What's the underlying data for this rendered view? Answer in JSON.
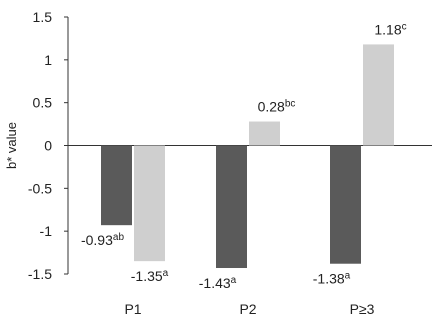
{
  "chart_data": {
    "type": "bar",
    "ylabel": "b* value",
    "ylim": [
      -1.5,
      1.5
    ],
    "yticks": [
      1.5,
      1,
      0.5,
      0,
      -0.5,
      -1,
      -1.5
    ],
    "ytick_labels": [
      "1.5",
      "1",
      "0.5",
      "0",
      "-0.5",
      "-1",
      "-1.5"
    ],
    "categories": [
      "P1",
      "P2",
      "P≥3"
    ],
    "series": [
      {
        "color": "#5a5a5a",
        "values": [
          -0.93,
          -1.43,
          -1.38
        ],
        "labels": [
          {
            "text": "-0.93",
            "sup": "ab"
          },
          {
            "text": "-1.43",
            "sup": "a"
          },
          {
            "text": "-1.38",
            "sup": "a"
          }
        ]
      },
      {
        "color": "#cfcfcf",
        "values": [
          -1.35,
          0.28,
          1.18
        ],
        "labels": [
          {
            "text": "-1.35",
            "sup": "a"
          },
          {
            "text": "0.28",
            "sup": "bc"
          },
          {
            "text": "1.18",
            "sup": "c"
          }
        ]
      }
    ],
    "grid": false,
    "legend": "none"
  }
}
